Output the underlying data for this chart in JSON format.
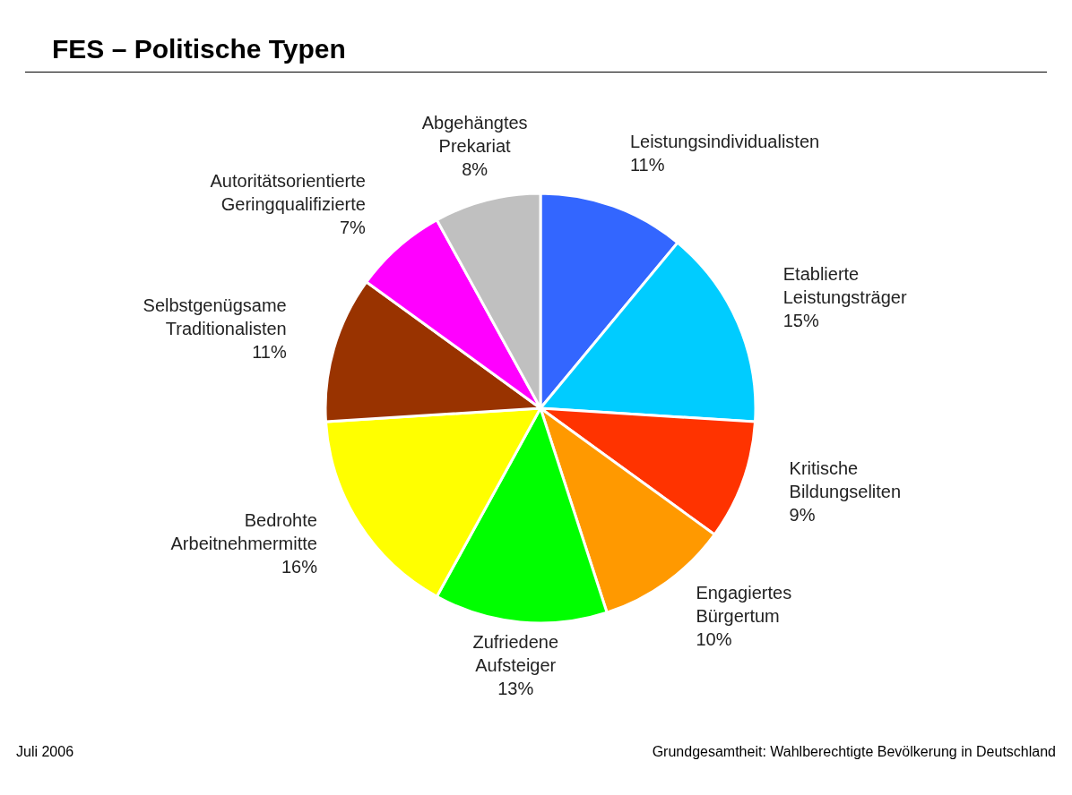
{
  "chart_data": {
    "type": "pie",
    "title": "FES – Politische Typen",
    "categories": [
      "Leistungsindividualisten",
      "Etablierte Leistungsträger",
      "Kritische Bildungseliten",
      "Engagiertes Bürgertum",
      "Zufriedene Aufsteiger",
      "Bedrohte Arbeitnehmermitte",
      "Selbstgenügsame Traditionalisten",
      "Autoritätsorientierte Geringqualifizierte",
      "Abgehängtes Prekariat"
    ],
    "values": [
      11,
      15,
      9,
      10,
      13,
      16,
      11,
      7,
      8
    ],
    "value_labels": [
      "11%",
      "15%",
      "9%",
      "10%",
      "13%",
      "16%",
      "11%",
      "7%",
      "8%"
    ],
    "colors": [
      "#3366ff",
      "#00ccff",
      "#ff3300",
      "#ff9900",
      "#00ff00",
      "#ffff00",
      "#993300",
      "#ff00ff",
      "#c0c0c0"
    ],
    "legend": false,
    "annotations": [
      "Juli 2006",
      "Grundgesamtheit: Wahlberechtigte Bevölkerung in Deutschland"
    ]
  }
}
